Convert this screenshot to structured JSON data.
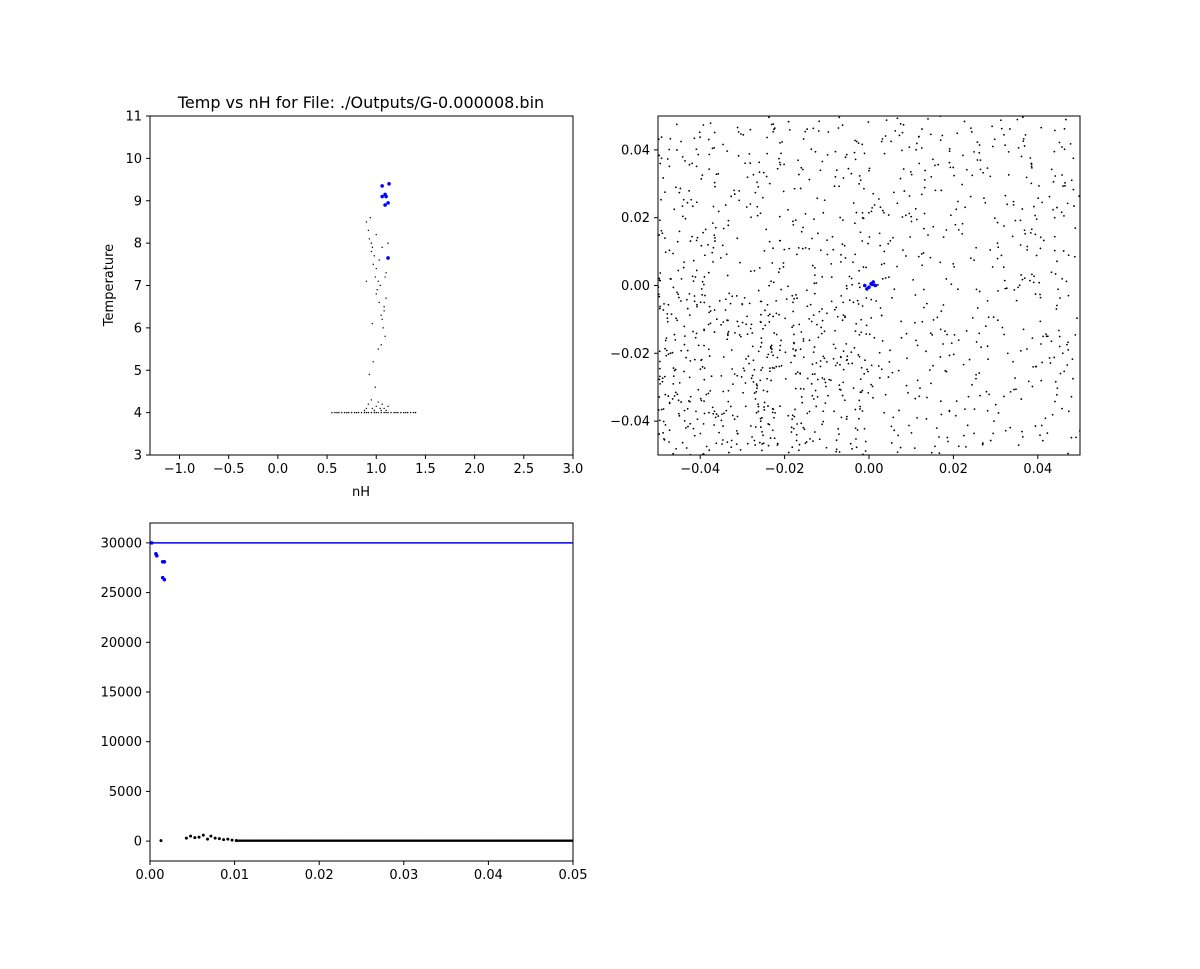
{
  "chart_data": [
    {
      "type": "scatter",
      "title": "Temp vs nH for File: ./Outputs/G-0.000008.bin",
      "xlabel": "nH",
      "ylabel": "Temperature",
      "xlim": [
        -1.3,
        3.0
      ],
      "ylim": [
        3,
        11
      ],
      "xticks": [
        "−1.0",
        "−0.5",
        "0.0",
        "0.5",
        "1.0",
        "1.5",
        "2.0",
        "2.5",
        "3.0"
      ],
      "xtick_values": [
        -1.0,
        -0.5,
        0.0,
        0.5,
        1.0,
        1.5,
        2.0,
        2.5,
        3.0
      ],
      "yticks": [
        "3",
        "4",
        "5",
        "6",
        "7",
        "8",
        "9",
        "10",
        "11"
      ],
      "ytick_values": [
        3,
        4,
        5,
        6,
        7,
        8,
        9,
        10,
        11
      ],
      "grid": false,
      "series": [
        {
          "color": "#000000",
          "x": [
            0.55,
            0.58,
            0.6,
            0.62,
            0.65,
            0.68,
            0.7,
            0.72,
            0.75,
            0.78,
            0.8,
            0.82,
            0.85,
            0.88,
            0.9,
            0.92,
            0.95,
            0.98,
            1.0,
            1.02,
            1.05,
            1.08,
            1.1,
            1.12,
            1.15,
            1.18,
            1.2,
            1.22,
            1.25,
            1.28,
            1.3,
            1.32,
            1.35,
            1.38,
            1.4,
            0.88,
            0.9,
            0.92,
            0.95,
            0.96,
            0.98,
            1.0,
            1.02,
            1.04,
            1.05,
            1.06,
            1.08,
            1.1,
            1.12,
            0.9,
            0.93,
            0.95,
            0.97,
            0.99,
            1.01,
            1.03,
            1.05,
            1.07,
            1.09,
            0.92,
            0.96,
            1.0,
            1.04,
            1.08,
            0.94,
            0.98,
            1.02,
            1.06,
            0.95,
            1.0,
            1.05,
            1.1,
            0.97,
            1.03,
            1.08,
            0.9,
            1.0,
            1.1,
            0.93,
            1.06,
            1.12,
            0.96,
            1.02,
            1.09,
            0.99
          ],
          "y": [
            4.0,
            4.0,
            4.0,
            4.0,
            4.0,
            4.0,
            4.0,
            4.0,
            4.0,
            4.0,
            4.0,
            4.0,
            4.0,
            4.0,
            4.0,
            4.0,
            4.0,
            4.0,
            4.0,
            4.0,
            4.0,
            4.0,
            4.0,
            4.0,
            4.0,
            4.0,
            4.0,
            4.0,
            4.0,
            4.0,
            4.0,
            4.0,
            4.0,
            4.0,
            4.0,
            4.05,
            4.1,
            4.2,
            4.3,
            4.1,
            4.05,
            4.15,
            4.25,
            4.1,
            4.05,
            4.2,
            4.1,
            4.05,
            4.15,
            8.5,
            8.1,
            7.8,
            7.5,
            7.2,
            6.9,
            6.6,
            6.3,
            6.0,
            5.8,
            8.3,
            7.9,
            7.4,
            7.0,
            6.5,
            8.6,
            7.7,
            7.1,
            6.2,
            8.0,
            6.8,
            5.6,
            7.3,
            5.2,
            7.6,
            6.4,
            7.1,
            8.2,
            6.7,
            4.9,
            7.9,
            8.0,
            6.1,
            5.5,
            7.2,
            4.6
          ]
        },
        {
          "color": "#0000ff",
          "x": [
            1.06,
            1.09,
            1.13,
            1.06,
            1.09,
            1.1,
            1.12,
            1.12
          ],
          "y": [
            9.35,
            9.15,
            9.4,
            9.1,
            8.9,
            9.1,
            8.95,
            7.65
          ]
        }
      ]
    },
    {
      "type": "scatter",
      "title": "",
      "xlabel": "",
      "ylabel": "",
      "xlim": [
        -0.05,
        0.05
      ],
      "ylim": [
        -0.05,
        0.05
      ],
      "xticks": [
        "−0.04",
        "−0.02",
        "0.00",
        "0.02",
        "0.04"
      ],
      "xtick_values": [
        -0.04,
        -0.02,
        0.0,
        0.02,
        0.04
      ],
      "yticks": [
        "−0.04",
        "−0.02",
        "0.00",
        "0.02",
        "0.04"
      ],
      "ytick_values": [
        -0.04,
        -0.02,
        0.0,
        0.02,
        0.04
      ],
      "grid": false,
      "series": [
        {
          "color": "#0000ff",
          "x": [
            -0.001,
            0.0,
            0.0005,
            0.001,
            0.0015,
            -0.0005,
            0.0008
          ],
          "y": [
            0.0,
            -0.0005,
            0.0005,
            0.001,
            0.0,
            -0.001,
            0.0003
          ]
        }
      ]
    },
    {
      "type": "scatter",
      "title": "",
      "xlabel": "",
      "ylabel": "",
      "xlim": [
        0.0,
        0.05
      ],
      "ylim": [
        -2000,
        32000
      ],
      "xticks": [
        "0.00",
        "0.01",
        "0.02",
        "0.03",
        "0.04",
        "0.05"
      ],
      "xtick_values": [
        0.0,
        0.01,
        0.02,
        0.03,
        0.04,
        0.05
      ],
      "yticks": [
        "0",
        "5000",
        "10000",
        "15000",
        "20000",
        "25000",
        "30000"
      ],
      "ytick_values": [
        0,
        5000,
        10000,
        15000,
        20000,
        25000,
        30000
      ],
      "grid": false,
      "hline": {
        "y": 30000,
        "color": "#0000ff"
      },
      "series": [
        {
          "color": "#000000",
          "x": [
            0.0013,
            0.0043,
            0.0048,
            0.0053,
            0.0058,
            0.0063,
            0.0068,
            0.0072,
            0.0077,
            0.0082,
            0.0087,
            0.0092,
            0.0097,
            0.0102
          ],
          "y": [
            50,
            300,
            500,
            350,
            400,
            600,
            200,
            500,
            300,
            250,
            150,
            200,
            100,
            60
          ]
        },
        {
          "color": "#0000ff",
          "x": [
            0.0007,
            0.0008,
            0.0015,
            0.0017,
            0.0015,
            0.0017,
            0.0002
          ],
          "y": [
            28900,
            28700,
            28100,
            28100,
            26500,
            26300,
            30000
          ]
        }
      ]
    }
  ]
}
